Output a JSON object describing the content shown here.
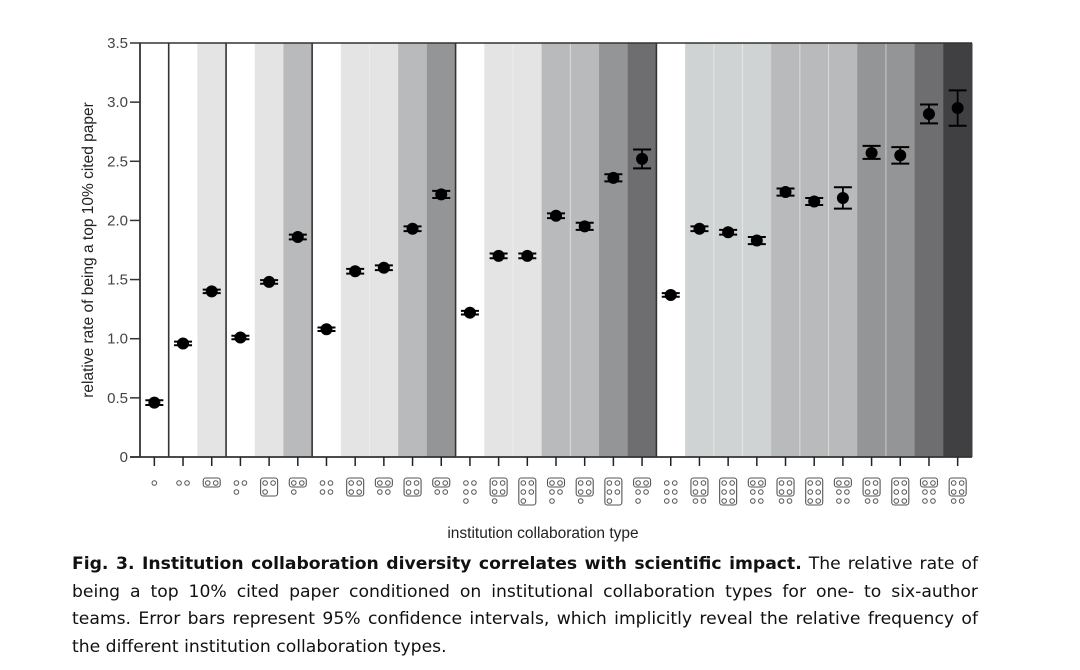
{
  "chart_data": {
    "type": "scatter",
    "title": "",
    "xlabel": "institution collaboration type",
    "ylabel": "relative rate of being a top 10% cited paper",
    "ylim": [
      0,
      3.5
    ],
    "yticks": [
      "0",
      "0.5",
      "1.0",
      "1.5",
      "2.0",
      "2.5",
      "3.0",
      "3.5"
    ],
    "ytick_values": [
      0,
      0.5,
      1.0,
      1.5,
      2.0,
      2.5,
      3.0,
      3.5
    ],
    "grid": false,
    "groups": [
      {
        "team_size": 1,
        "values": [
          0.46
        ],
        "lo": [
          0.44
        ],
        "hi": [
          0.48
        ],
        "shades": [
          "#ffffff"
        ]
      },
      {
        "team_size": 2,
        "values": [
          0.96,
          1.4
        ],
        "lo": [
          0.945,
          1.385
        ],
        "hi": [
          0.975,
          1.415
        ],
        "shades": [
          "#ffffff",
          "#e4e4e4"
        ]
      },
      {
        "team_size": 3,
        "values": [
          1.01,
          1.48,
          1.86
        ],
        "lo": [
          0.995,
          1.465,
          1.84
        ],
        "hi": [
          1.025,
          1.495,
          1.88
        ],
        "shades": [
          "#ffffff",
          "#e4e4e4",
          "#b8babc"
        ]
      },
      {
        "team_size": 4,
        "values": [
          1.08,
          1.57,
          1.6,
          1.93,
          2.22
        ],
        "lo": [
          1.065,
          1.55,
          1.58,
          1.91,
          2.19
        ],
        "hi": [
          1.095,
          1.59,
          1.62,
          1.95,
          2.25
        ],
        "shades": [
          "#ffffff",
          "#e4e4e4",
          "#e4e4e4",
          "#b8babc",
          "#949596"
        ]
      },
      {
        "team_size": 5,
        "values": [
          1.22,
          1.7,
          1.7,
          2.04,
          1.95,
          2.36,
          2.52
        ],
        "lo": [
          1.205,
          1.68,
          1.68,
          2.02,
          1.92,
          2.33,
          2.44
        ],
        "hi": [
          1.235,
          1.72,
          1.72,
          2.06,
          1.98,
          2.39,
          2.6
        ],
        "shades": [
          "#ffffff",
          "#e4e4e4",
          "#e4e4e4",
          "#b8babc",
          "#b8babc",
          "#949596",
          "#6e6e70"
        ]
      },
      {
        "team_size": 6,
        "values": [
          1.37,
          1.93,
          1.9,
          1.83,
          2.24,
          2.16,
          2.19,
          2.57,
          2.55,
          2.9,
          2.95
        ],
        "lo": [
          1.355,
          1.91,
          1.88,
          1.8,
          2.21,
          2.13,
          2.1,
          2.52,
          2.48,
          2.82,
          2.8
        ],
        "hi": [
          1.385,
          1.95,
          1.92,
          1.86,
          2.27,
          2.19,
          2.28,
          2.63,
          2.62,
          2.98,
          3.1
        ],
        "shades": [
          "#ffffff",
          "#d0d3d4",
          "#d0d3d4",
          "#d0d3d4",
          "#b8babc",
          "#b8babc",
          "#b8babc",
          "#949596",
          "#949596",
          "#6e6e70",
          "#404042"
        ]
      }
    ]
  },
  "caption": {
    "bold": "Fig. 3. Institution collaboration diversity correlates with scientific impact.",
    "text": " The relative rate of being a top 10% cited paper conditioned on institutional collaboration types for one- to six-author teams. Error bars represent 95% confidence intervals, which implicitly reveal the relative frequency of the different institution collaboration types."
  }
}
